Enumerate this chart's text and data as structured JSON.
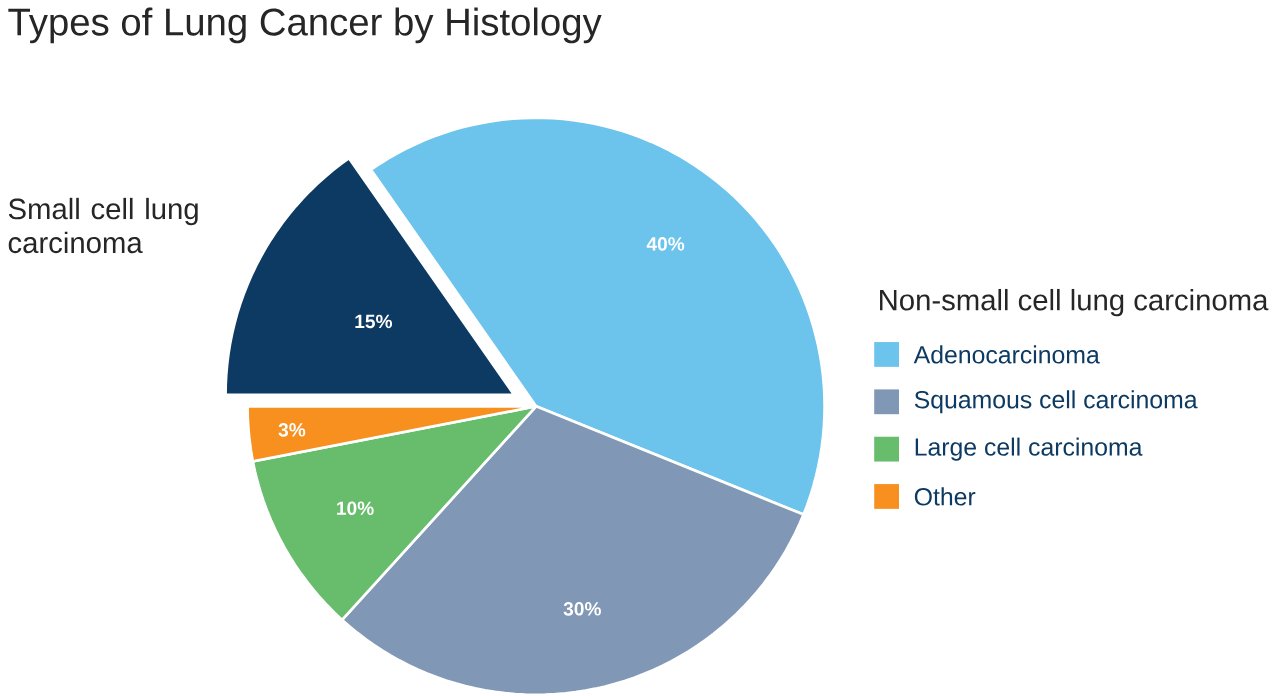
{
  "chart_data": {
    "type": "pie",
    "title": "Types of Lung Cancer by Histology",
    "legend_title": "Non-small cell lung carcinoma",
    "legend": "right",
    "categories": [
      "Adenocarcinoma",
      "Squamous cell carcinoma",
      "Large cell carcinoma",
      "Other",
      "Small cell lung carcinoma"
    ],
    "values": [
      40,
      30,
      10,
      3,
      15
    ],
    "value_labels": [
      "40%",
      "30%",
      "10%",
      "3%",
      "15%"
    ],
    "colors": [
      "#6cc3ec",
      "#8097b5",
      "#67bd6b",
      "#f7901e",
      "#0d3a62"
    ]
  }
}
